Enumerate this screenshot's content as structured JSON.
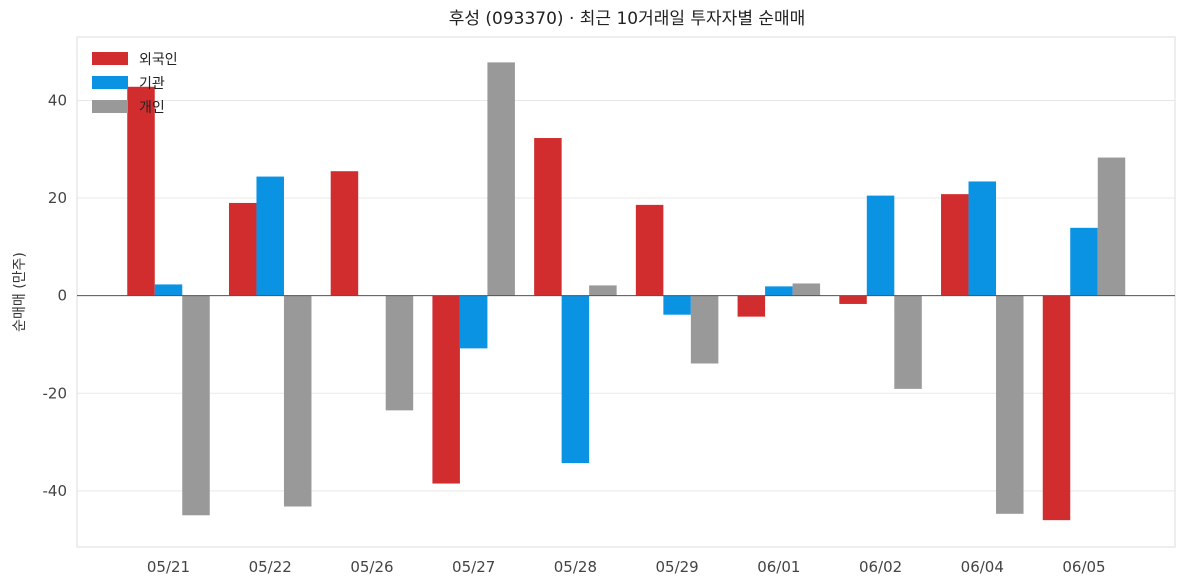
{
  "chart_data": {
    "type": "bar",
    "title": "후성 (093370) · 최근 10거래일 투자자별 순매매",
    "ylabel": "순매매 (만주)",
    "xlabel": "",
    "categories": [
      "05/21",
      "05/22",
      "05/26",
      "05/27",
      "05/28",
      "05/29",
      "06/01",
      "06/02",
      "06/04",
      "06/05"
    ],
    "series": [
      {
        "name": "외국인",
        "color": "#d12d2f",
        "values": [
          42.8,
          19.0,
          25.5,
          -38.5,
          32.3,
          18.6,
          -4.3,
          -1.7,
          20.8,
          -46.0
        ]
      },
      {
        "name": "기관",
        "color": "#0a92e3",
        "values": [
          2.3,
          24.4,
          0,
          -10.8,
          -34.3,
          -3.9,
          1.9,
          20.5,
          23.4,
          13.9
        ]
      },
      {
        "name": "개인",
        "color": "#999999",
        "values": [
          -45.0,
          -43.2,
          -23.5,
          47.8,
          2.1,
          -13.9,
          2.5,
          -19.1,
          -44.7,
          28.3
        ]
      }
    ],
    "yticks": [
      -40,
      -20,
      0,
      20,
      40
    ],
    "ytick_labels": [
      "-40",
      "-20",
      "0",
      "20",
      "40"
    ],
    "ylim": [
      -51.5,
      53
    ],
    "grid": true,
    "legend_position": "top-left"
  }
}
